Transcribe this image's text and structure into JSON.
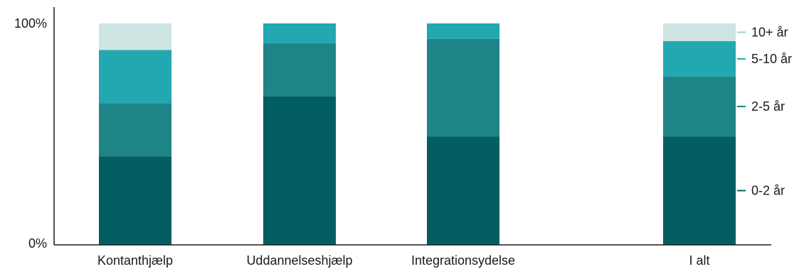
{
  "chart_data": {
    "type": "bar",
    "stacked": true,
    "normalized": true,
    "categories": [
      "Kontanthjælp",
      "Uddannelseshjælp",
      "Integrationsydelse",
      "I alt"
    ],
    "series": [
      {
        "name": "0-2 år",
        "color": "#035e62",
        "values": [
          40,
          67,
          49,
          49
        ]
      },
      {
        "name": "2-5 år",
        "color": "#1e8487",
        "values": [
          24,
          24,
          44,
          27
        ]
      },
      {
        "name": "5-10 år",
        "color": "#21a8b0",
        "values": [
          24,
          9,
          7,
          16
        ]
      },
      {
        "name": "10+ år",
        "color": "#cde4e2",
        "values": [
          12,
          0,
          0,
          8
        ]
      }
    ],
    "ylim": [
      0,
      100
    ],
    "y_ticks": [
      "0%",
      "100%"
    ],
    "legend_position": "right",
    "grid": false
  }
}
